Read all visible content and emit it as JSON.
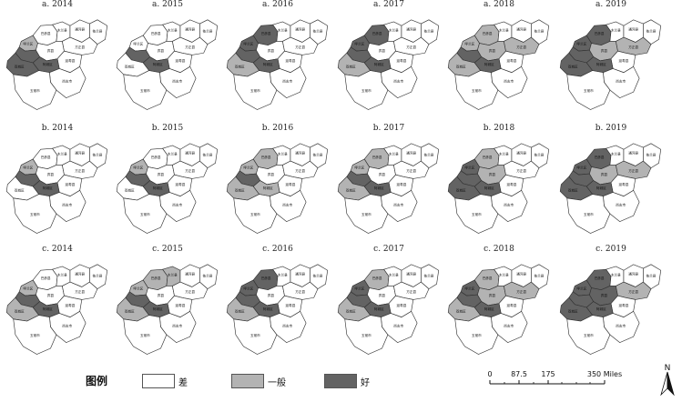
{
  "colors": {
    "poor": "#ffffff",
    "fair": "#b3b3b3",
    "good": "#636363"
  },
  "region_labels": {
    "bayan": "巴彦县",
    "mulan": "木兰县",
    "tonghe": "通河县",
    "yilan": "依兰县",
    "hulan": "呼兰区",
    "binxian": "宾县",
    "fangzheng": "方正县",
    "yanshou": "延寿县",
    "acheng": "阿城区",
    "shuangcheng": "双城区",
    "shangzhi": "尚志市",
    "wuchang": "五常市"
  },
  "panels": [
    {
      "title": "a. 2014",
      "row": 0,
      "col": 0,
      "classes": {
        "bayan": "poor",
        "mulan": "poor",
        "tonghe": "poor",
        "yilan": "poor",
        "hulan": "fair",
        "core": "good",
        "binxian": "poor",
        "fangzheng": "poor",
        "yanshou": "poor",
        "acheng": "good",
        "shuangcheng": "good",
        "shangzhi": "poor",
        "wuchang": "poor"
      }
    },
    {
      "title": "a. 2015",
      "row": 0,
      "col": 1,
      "classes": {
        "bayan": "poor",
        "mulan": "poor",
        "tonghe": "poor",
        "yilan": "poor",
        "hulan": "poor",
        "core": "good",
        "binxian": "poor",
        "fangzheng": "poor",
        "yanshou": "poor",
        "acheng": "good",
        "shuangcheng": "poor",
        "shangzhi": "poor",
        "wuchang": "poor"
      }
    },
    {
      "title": "a. 2016",
      "row": 0,
      "col": 2,
      "classes": {
        "bayan": "good",
        "mulan": "poor",
        "tonghe": "poor",
        "yilan": "poor",
        "hulan": "good",
        "core": "good",
        "binxian": "poor",
        "fangzheng": "poor",
        "yanshou": "poor",
        "acheng": "good",
        "shuangcheng": "fair",
        "shangzhi": "poor",
        "wuchang": "poor"
      }
    },
    {
      "title": "a. 2017",
      "row": 0,
      "col": 3,
      "classes": {
        "bayan": "good",
        "mulan": "poor",
        "tonghe": "poor",
        "yilan": "poor",
        "hulan": "good",
        "core": "good",
        "binxian": "poor",
        "fangzheng": "poor",
        "yanshou": "poor",
        "acheng": "good",
        "shuangcheng": "fair",
        "shangzhi": "poor",
        "wuchang": "poor"
      }
    },
    {
      "title": "a. 2018",
      "row": 0,
      "col": 4,
      "classes": {
        "bayan": "fair",
        "mulan": "poor",
        "tonghe": "poor",
        "yilan": "poor",
        "hulan": "fair",
        "core": "good",
        "binxian": "fair",
        "fangzheng": "fair",
        "yanshou": "poor",
        "acheng": "good",
        "shuangcheng": "fair",
        "shangzhi": "poor",
        "wuchang": "poor"
      }
    },
    {
      "title": "a. 2019",
      "row": 0,
      "col": 5,
      "classes": {
        "bayan": "good",
        "mulan": "poor",
        "tonghe": "poor",
        "yilan": "poor",
        "hulan": "good",
        "core": "good",
        "binxian": "fair",
        "fangzheng": "fair",
        "yanshou": "poor",
        "acheng": "good",
        "shuangcheng": "good",
        "shangzhi": "poor",
        "wuchang": "poor"
      }
    },
    {
      "title": "b. 2014",
      "row": 1,
      "col": 0,
      "classes": {
        "bayan": "poor",
        "mulan": "poor",
        "tonghe": "poor",
        "yilan": "poor",
        "hulan": "fair",
        "core": "good",
        "binxian": "poor",
        "fangzheng": "poor",
        "yanshou": "poor",
        "acheng": "good",
        "shuangcheng": "poor",
        "shangzhi": "poor",
        "wuchang": "poor"
      }
    },
    {
      "title": "b. 2015",
      "row": 1,
      "col": 1,
      "classes": {
        "bayan": "poor",
        "mulan": "poor",
        "tonghe": "poor",
        "yilan": "poor",
        "hulan": "fair",
        "core": "good",
        "binxian": "poor",
        "fangzheng": "poor",
        "yanshou": "poor",
        "acheng": "good",
        "shuangcheng": "poor",
        "shangzhi": "poor",
        "wuchang": "poor"
      }
    },
    {
      "title": "b. 2016",
      "row": 1,
      "col": 2,
      "classes": {
        "bayan": "fair",
        "mulan": "poor",
        "tonghe": "poor",
        "yilan": "poor",
        "hulan": "fair",
        "core": "good",
        "binxian": "poor",
        "fangzheng": "poor",
        "yanshou": "poor",
        "acheng": "fair",
        "shuangcheng": "fair",
        "shangzhi": "poor",
        "wuchang": "poor"
      }
    },
    {
      "title": "b. 2017",
      "row": 1,
      "col": 3,
      "classes": {
        "bayan": "fair",
        "mulan": "poor",
        "tonghe": "poor",
        "yilan": "poor",
        "hulan": "fair",
        "core": "good",
        "binxian": "poor",
        "fangzheng": "poor",
        "yanshou": "poor",
        "acheng": "good",
        "shuangcheng": "fair",
        "shangzhi": "poor",
        "wuchang": "poor"
      }
    },
    {
      "title": "b. 2018",
      "row": 1,
      "col": 4,
      "classes": {
        "bayan": "fair",
        "mulan": "poor",
        "tonghe": "poor",
        "yilan": "poor",
        "hulan": "good",
        "core": "good",
        "binxian": "fair",
        "fangzheng": "poor",
        "yanshou": "poor",
        "acheng": "good",
        "shuangcheng": "good",
        "shangzhi": "poor",
        "wuchang": "poor"
      }
    },
    {
      "title": "b. 2019",
      "row": 1,
      "col": 5,
      "classes": {
        "bayan": "good",
        "mulan": "poor",
        "tonghe": "poor",
        "yilan": "poor",
        "hulan": "good",
        "core": "good",
        "binxian": "fair",
        "fangzheng": "fair",
        "yanshou": "poor",
        "acheng": "good",
        "shuangcheng": "good",
        "shangzhi": "poor",
        "wuchang": "poor"
      }
    },
    {
      "title": "c. 2014",
      "row": 2,
      "col": 0,
      "classes": {
        "bayan": "poor",
        "mulan": "poor",
        "tonghe": "poor",
        "yilan": "poor",
        "hulan": "fair",
        "core": "good",
        "binxian": "poor",
        "fangzheng": "poor",
        "yanshou": "poor",
        "acheng": "good",
        "shuangcheng": "fair",
        "shangzhi": "poor",
        "wuchang": "poor"
      }
    },
    {
      "title": "c. 2015",
      "row": 2,
      "col": 1,
      "classes": {
        "bayan": "fair",
        "mulan": "fair",
        "tonghe": "poor",
        "yilan": "poor",
        "hulan": "fair",
        "core": "good",
        "binxian": "poor",
        "fangzheng": "poor",
        "yanshou": "poor",
        "acheng": "good",
        "shuangcheng": "fair",
        "shangzhi": "poor",
        "wuchang": "poor"
      }
    },
    {
      "title": "c. 2016",
      "row": 2,
      "col": 2,
      "classes": {
        "bayan": "good",
        "mulan": "poor",
        "tonghe": "poor",
        "yilan": "poor",
        "hulan": "good",
        "core": "good",
        "binxian": "poor",
        "fangzheng": "poor",
        "yanshou": "poor",
        "acheng": "good",
        "shuangcheng": "fair",
        "shangzhi": "poor",
        "wuchang": "poor"
      }
    },
    {
      "title": "c. 2017",
      "row": 2,
      "col": 3,
      "classes": {
        "bayan": "fair",
        "mulan": "poor",
        "tonghe": "poor",
        "yilan": "poor",
        "hulan": "good",
        "core": "good",
        "binxian": "poor",
        "fangzheng": "poor",
        "yanshou": "poor",
        "acheng": "good",
        "shuangcheng": "fair",
        "shangzhi": "poor",
        "wuchang": "poor"
      }
    },
    {
      "title": "c. 2018",
      "row": 2,
      "col": 4,
      "classes": {
        "bayan": "fair",
        "mulan": "poor",
        "tonghe": "poor",
        "yilan": "poor",
        "hulan": "good",
        "core": "good",
        "binxian": "fair",
        "fangzheng": "fair",
        "yanshou": "poor",
        "acheng": "good",
        "shuangcheng": "fair",
        "shangzhi": "poor",
        "wuchang": "poor"
      }
    },
    {
      "title": "c. 2019",
      "row": 2,
      "col": 5,
      "classes": {
        "bayan": "good",
        "mulan": "poor",
        "tonghe": "poor",
        "yilan": "poor",
        "hulan": "good",
        "core": "good",
        "binxian": "good",
        "fangzheng": "fair",
        "yanshou": "poor",
        "acheng": "good",
        "shuangcheng": "good",
        "shangzhi": "poor",
        "wuchang": "poor"
      }
    }
  ],
  "legend": {
    "title": "图例",
    "items": [
      {
        "key": "poor",
        "label": "差"
      },
      {
        "key": "fair",
        "label": "一般"
      },
      {
        "key": "good",
        "label": "好"
      }
    ]
  },
  "scale_bar": {
    "ticks": [
      "0",
      "87.5",
      "175",
      "350 Miles"
    ]
  },
  "north_arrow": {
    "label": "N"
  }
}
